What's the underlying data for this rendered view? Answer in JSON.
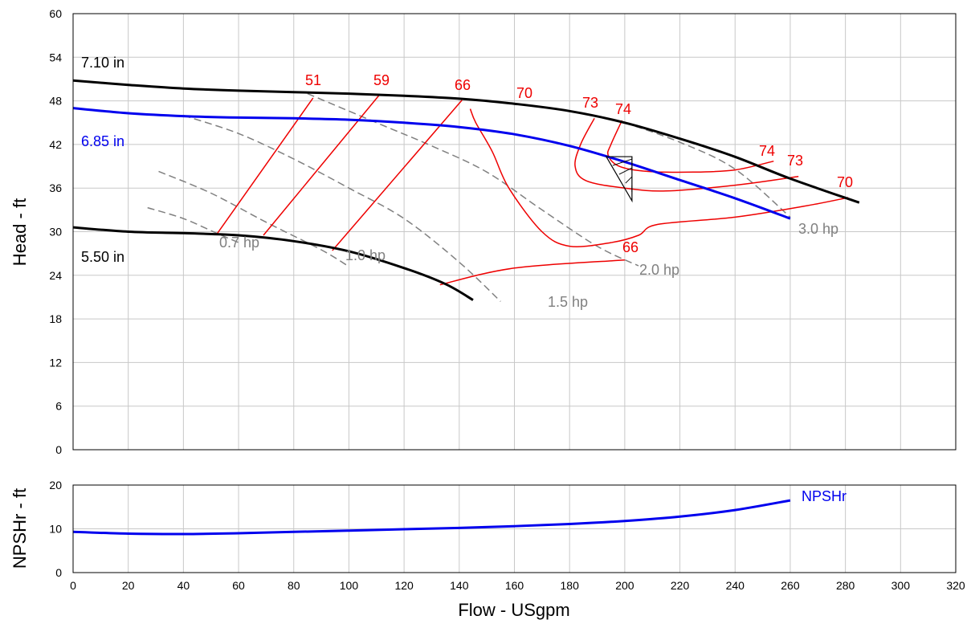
{
  "chart_data": [
    {
      "type": "line",
      "title": "",
      "xlabel": "",
      "ylabel": "Head - ft",
      "xlim": [
        0,
        320
      ],
      "ylim": [
        0,
        60
      ],
      "x_ticks": [
        "0",
        "20",
        "40",
        "60",
        "80",
        "100",
        "120",
        "140",
        "160",
        "180",
        "200",
        "220",
        "240",
        "260",
        "280",
        "300",
        "320"
      ],
      "y_ticks": [
        "0",
        "6",
        "12",
        "18",
        "24",
        "30",
        "36",
        "42",
        "48",
        "54",
        "60"
      ],
      "grid": true,
      "impeller_curves": [
        {
          "label": "7.10 in",
          "color": "#000000",
          "points": [
            [
              0,
              50.8
            ],
            [
              20,
              50.2
            ],
            [
              40,
              49.7
            ],
            [
              60,
              49.4
            ],
            [
              80,
              49.2
            ],
            [
              100,
              49.0
            ],
            [
              120,
              48.7
            ],
            [
              140,
              48.3
            ],
            [
              160,
              47.6
            ],
            [
              180,
              46.6
            ],
            [
              200,
              45.0
            ],
            [
              220,
              42.8
            ],
            [
              240,
              40.3
            ],
            [
              260,
              37.3
            ],
            [
              285,
              34.0
            ]
          ]
        },
        {
          "label": "6.85 in",
          "color": "#0000ee",
          "points": [
            [
              0,
              47.0
            ],
            [
              20,
              46.3
            ],
            [
              40,
              45.9
            ],
            [
              60,
              45.7
            ],
            [
              80,
              45.6
            ],
            [
              100,
              45.4
            ],
            [
              120,
              45.0
            ],
            [
              140,
              44.4
            ],
            [
              160,
              43.4
            ],
            [
              180,
              41.8
            ],
            [
              200,
              39.6
            ],
            [
              220,
              37.1
            ],
            [
              240,
              34.6
            ],
            [
              260,
              31.8
            ]
          ]
        },
        {
          "label": "5.50 in",
          "color": "#000000",
          "points": [
            [
              0,
              30.6
            ],
            [
              20,
              30.0
            ],
            [
              40,
              29.8
            ],
            [
              60,
              29.5
            ],
            [
              80,
              28.7
            ],
            [
              100,
              27.3
            ],
            [
              120,
              25.0
            ],
            [
              135,
              22.8
            ],
            [
              145,
              20.6
            ]
          ]
        }
      ],
      "power_curves": [
        {
          "label": "0.7 hp",
          "points": [
            [
              27,
              33.3
            ],
            [
              40,
              31.8
            ],
            [
              52,
              29.8
            ],
            [
              60,
              28.5
            ]
          ]
        },
        {
          "label": "1.0 hp",
          "points": [
            [
              31,
              38.3
            ],
            [
              50,
              35.3
            ],
            [
              70,
              31.3
            ],
            [
              90,
              27.5
            ],
            [
              100,
              25.2
            ]
          ]
        },
        {
          "label": "1.5 hp",
          "points": [
            [
              40,
              46.0
            ],
            [
              60,
              43.5
            ],
            [
              80,
              40.0
            ],
            [
              100,
              36.0
            ],
            [
              120,
              31.8
            ],
            [
              140,
              25.8
            ],
            [
              155,
              20.4
            ]
          ]
        },
        {
          "label": "2.0 hp",
          "points": [
            [
              85,
              49.0
            ],
            [
              110,
              45.0
            ],
            [
              130,
              41.8
            ],
            [
              150,
              38.2
            ],
            [
              170,
              33.0
            ],
            [
              190,
              28.0
            ],
            [
              205,
              25.3
            ]
          ]
        },
        {
          "label": "3.0 hp",
          "points": [
            [
              200,
              45.0
            ],
            [
              220,
              42.3
            ],
            [
              240,
              38.6
            ],
            [
              260,
              32.0
            ]
          ]
        }
      ],
      "efficiency_curves": [
        {
          "label": "51",
          "points": [
            [
              52,
              29.6
            ],
            [
              87,
              48.4
            ]
          ]
        },
        {
          "label": "59",
          "points": [
            [
              69,
              29.5
            ],
            [
              111,
              48.8
            ]
          ]
        },
        {
          "label": "66",
          "points": [
            [
              94,
              27.4
            ],
            [
              141,
              48.1
            ]
          ]
        },
        {
          "label": "70",
          "points": [
            [
              144,
              46.9
            ],
            [
              146,
              45.0
            ],
            [
              152,
              41.0
            ],
            [
              158,
              36.0
            ],
            [
              170,
              30.0
            ],
            [
              180,
              28.0
            ],
            [
              195,
              28.5
            ],
            [
              205,
              29.5
            ],
            [
              212,
              31.0
            ],
            [
              240,
              32.0
            ],
            [
              265,
              33.5
            ],
            [
              281,
              34.7
            ]
          ]
        },
        {
          "label": "73",
          "points": [
            [
              189,
              45.6
            ],
            [
              184,
              42.0
            ],
            [
              182,
              39.0
            ],
            [
              186,
              37.0
            ],
            [
              200,
              36.0
            ],
            [
              215,
              35.6
            ],
            [
              240,
              36.4
            ],
            [
              263,
              37.6
            ]
          ]
        },
        {
          "label": "74",
          "points": [
            [
              199,
              45.3
            ],
            [
              195,
              42.0
            ],
            [
              194,
              40.5
            ],
            [
              198,
              39.0
            ],
            [
              208,
              38.3
            ],
            [
              225,
              38.2
            ],
            [
              240,
              38.5
            ],
            [
              254,
              39.7
            ]
          ]
        },
        {
          "label": "66",
          "points": [
            [
              133,
              22.7
            ],
            [
              160,
              25.0
            ],
            [
              200,
              26.1
            ]
          ]
        }
      ],
      "marker": {
        "x": 200,
        "y": 39
      }
    },
    {
      "type": "line",
      "xlabel": "Flow - USgpm",
      "ylabel": "NPSHr - ft",
      "xlim": [
        0,
        320
      ],
      "ylim": [
        0,
        20
      ],
      "x_ticks": [
        "0",
        "20",
        "40",
        "60",
        "80",
        "100",
        "120",
        "140",
        "160",
        "180",
        "200",
        "220",
        "240",
        "260",
        "280",
        "300",
        "320"
      ],
      "y_ticks": [
        "0",
        "10",
        "20"
      ],
      "grid": true,
      "series": [
        {
          "name": "NPSHr",
          "color": "#0000ee",
          "points": [
            [
              0,
              9.3
            ],
            [
              20,
              8.9
            ],
            [
              40,
              8.8
            ],
            [
              60,
              9.0
            ],
            [
              80,
              9.3
            ],
            [
              100,
              9.6
            ],
            [
              120,
              9.9
            ],
            [
              140,
              10.2
            ],
            [
              160,
              10.6
            ],
            [
              180,
              11.1
            ],
            [
              200,
              11.8
            ],
            [
              220,
              12.8
            ],
            [
              240,
              14.3
            ],
            [
              260,
              16.5
            ]
          ]
        }
      ]
    }
  ]
}
